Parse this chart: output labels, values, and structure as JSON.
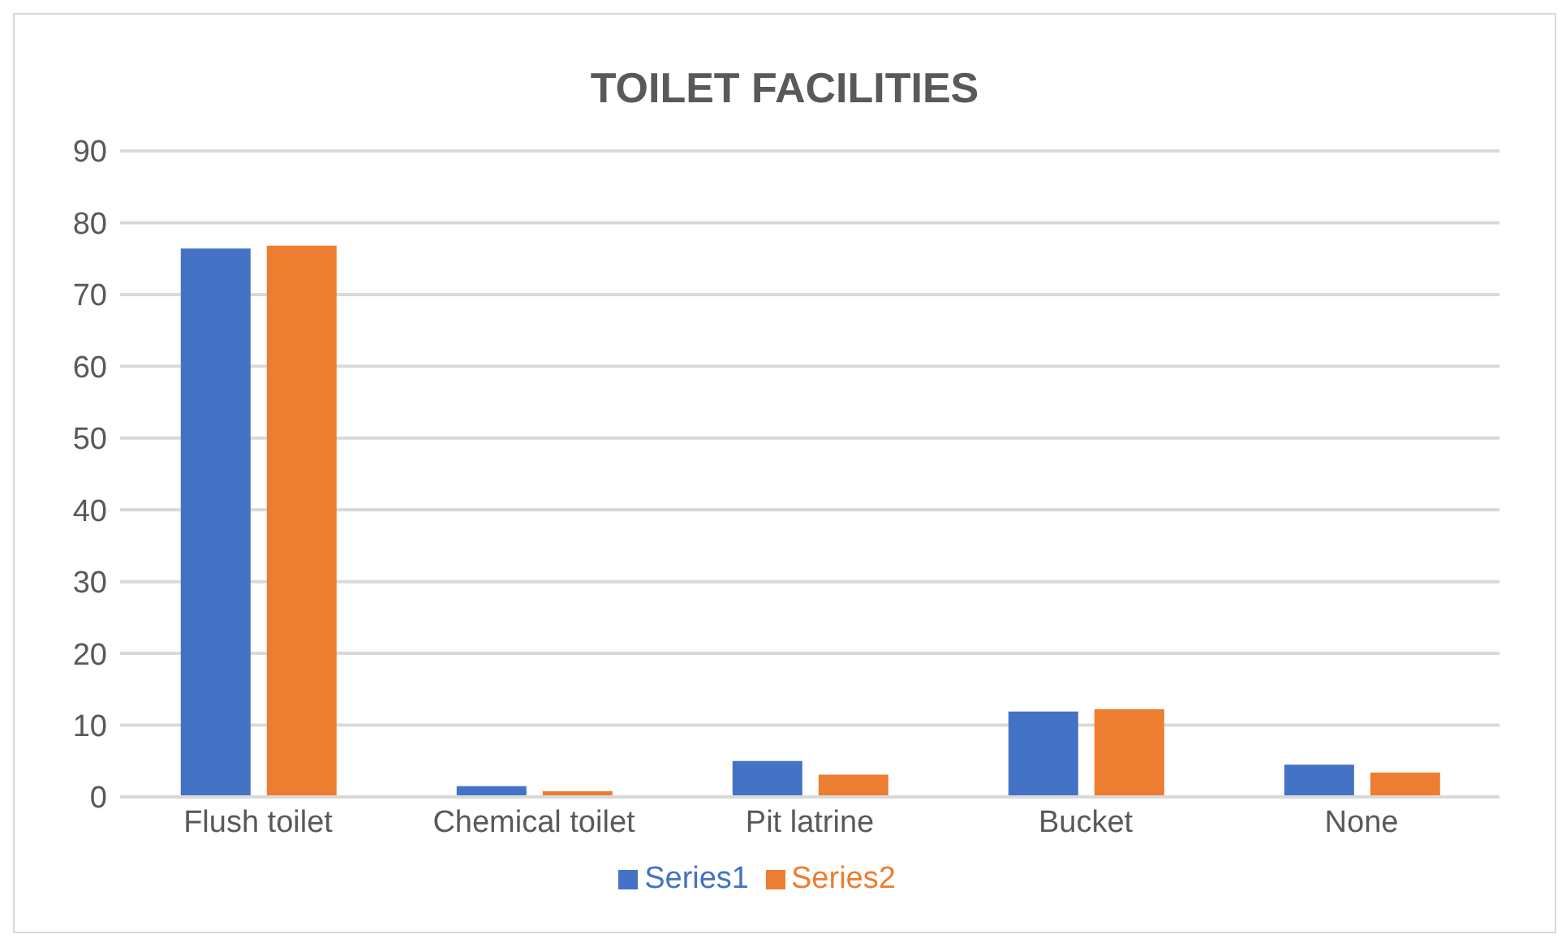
{
  "chart_data": {
    "type": "bar",
    "title": "TOILET FACILITIES",
    "categories": [
      "Flush toilet",
      "Chemical toilet",
      "Pit latrine",
      "Bucket",
      "None"
    ],
    "series": [
      {
        "name": "Series1",
        "color": "#4472c4",
        "values": [
          76.4,
          1.5,
          5.0,
          11.9,
          4.5
        ]
      },
      {
        "name": "Series2",
        "color": "#ed7d31",
        "values": [
          76.8,
          0.8,
          3.1,
          12.2,
          3.4
        ]
      }
    ],
    "ylim": [
      0,
      90
    ],
    "yticks": [
      0,
      10,
      20,
      30,
      40,
      50,
      60,
      70,
      80,
      90
    ],
    "grid": "y",
    "legend": "bottom"
  }
}
